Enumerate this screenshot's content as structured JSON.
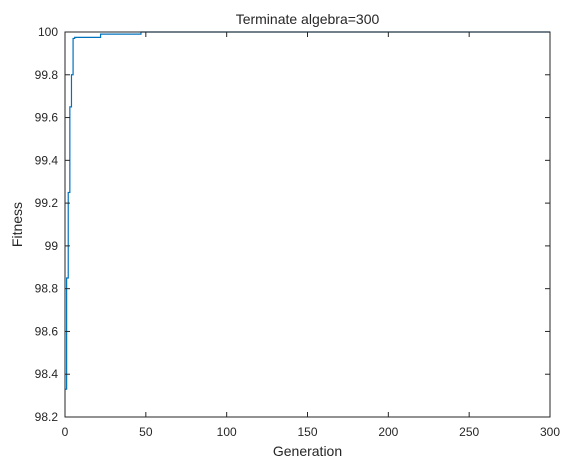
{
  "chart_data": {
    "type": "line",
    "title": "Terminate algebra=300",
    "xlabel": "Generation",
    "ylabel": "Fitness",
    "xlim": [
      0,
      300
    ],
    "ylim": [
      98.2,
      100
    ],
    "xticks": [
      0,
      50,
      100,
      150,
      200,
      250,
      300
    ],
    "yticks": [
      98.2,
      98.4,
      98.6,
      98.8,
      99,
      99.2,
      99.4,
      99.6,
      99.8,
      100
    ],
    "xtick_labels": [
      "0",
      "50",
      "100",
      "150",
      "200",
      "250",
      "300"
    ],
    "ytick_labels": [
      "98.2",
      "98.4",
      "98.6",
      "98.8",
      "99",
      "99.2",
      "99.4",
      "99.6",
      "99.8",
      "100"
    ],
    "grid": false,
    "series": [
      {
        "color": "#0072BD",
        "step": true,
        "x": [
          0,
          1,
          2,
          3,
          4,
          5,
          6,
          22,
          47,
          300
        ],
        "y": [
          98.33,
          98.85,
          99.25,
          99.65,
          99.8,
          99.97,
          99.975,
          99.99,
          100,
          100
        ]
      }
    ]
  }
}
